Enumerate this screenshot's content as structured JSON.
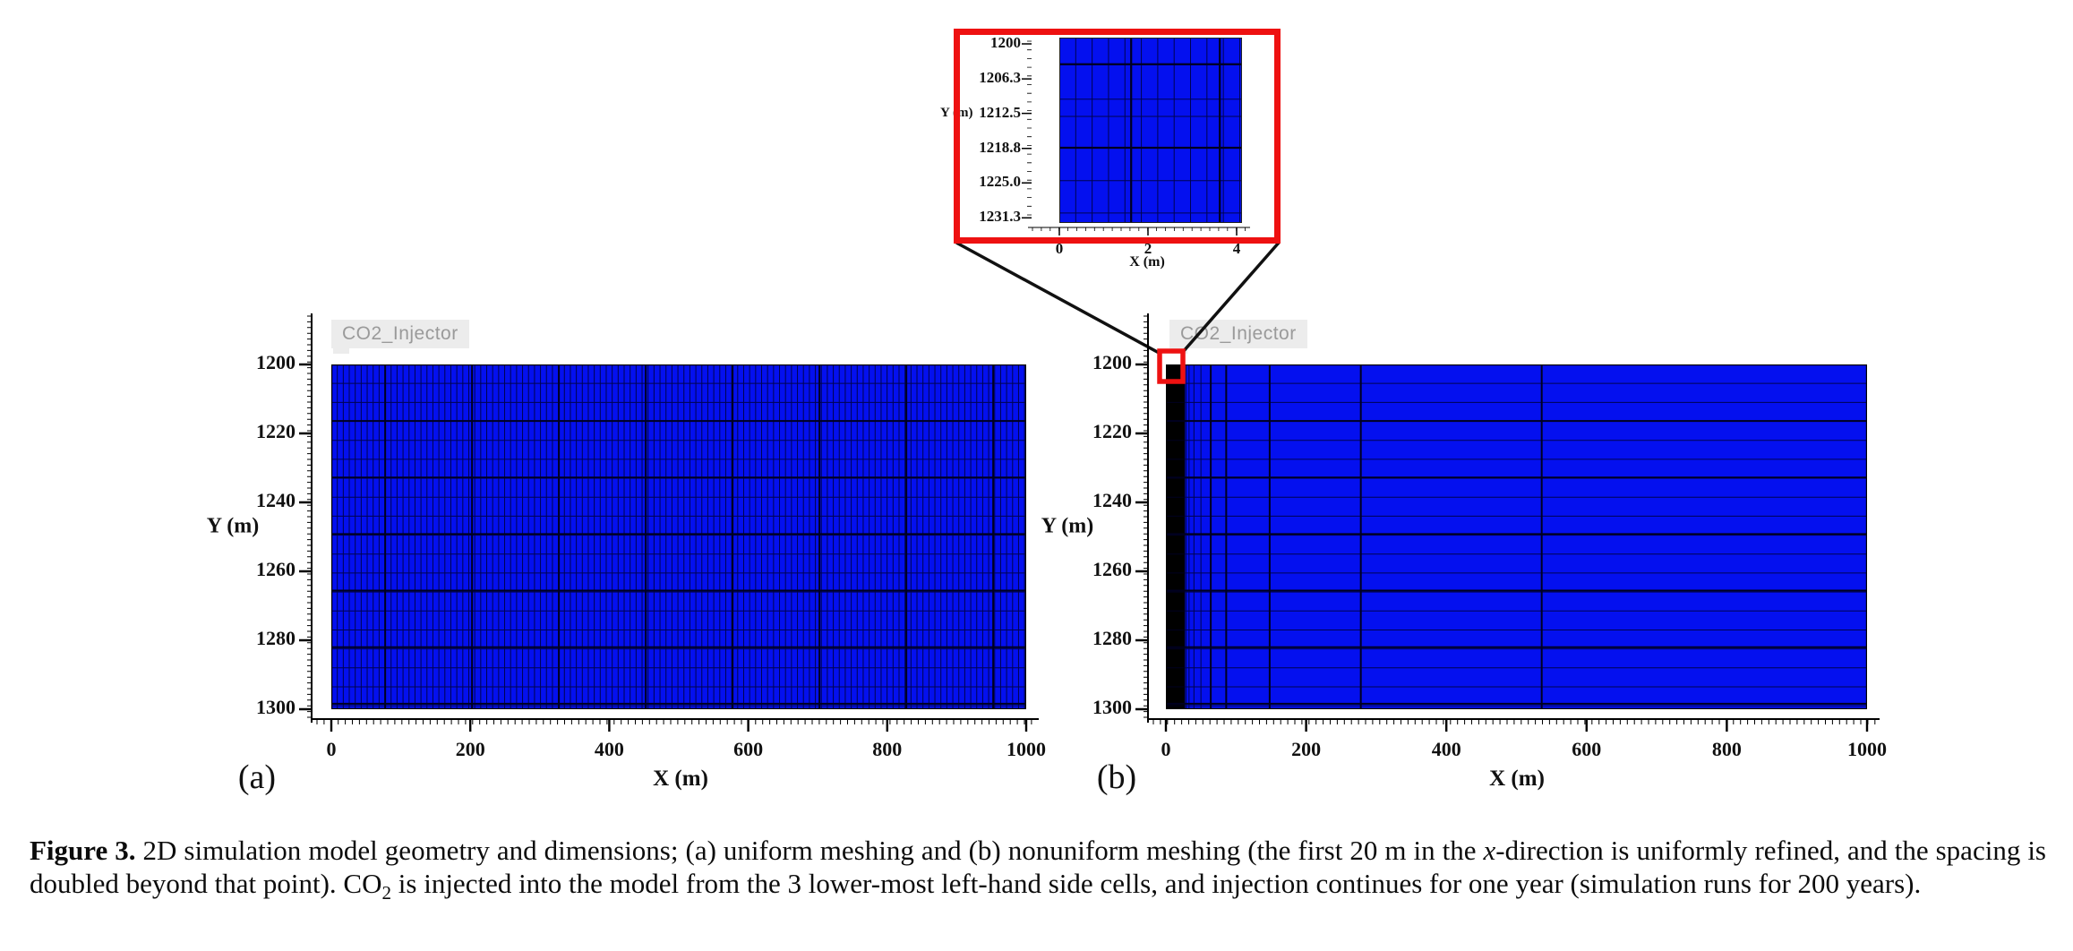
{
  "colors": {
    "mesh_blue": "#0410ef",
    "grid_minor": "rgba(0,0,40,0.8)",
    "grid_bold": "#000020",
    "refined_band": "#000000",
    "callout_red": "#ee1111",
    "injector_bg": "#ececec",
    "injector_text": "#9a9a9a",
    "text": "#111111"
  },
  "inset": {
    "ylabel": "Y (m)",
    "xlabel": "X (m)"
  },
  "panel_a": {
    "injector_label": "CO2_Injector",
    "tag": "(a)",
    "xlabel": "X (m)",
    "ylabel": "Y (m)"
  },
  "panel_b": {
    "injector_label": "CO2_Injector",
    "tag": "(b)",
    "xlabel": "X (m)",
    "ylabel": "Y (m)"
  },
  "caption": {
    "parts": [
      {
        "text": "Figure 3.",
        "bold": true
      },
      {
        "text": " 2D simulation model geometry and dimensions; (a) uniform meshing and (b) nonuniform meshing (the first 20 m in the "
      },
      {
        "text": "x",
        "italic": true
      },
      {
        "text": "-direction is uniformly refined, and the spacing is doubled beyond that point). CO"
      },
      {
        "text": "2",
        "sub": true
      },
      {
        "text": " is injected into the model from the 3 lower-most left-hand side cells, and injection continues for one year (simulation runs for 200 years)."
      }
    ]
  },
  "chart_data": [
    {
      "id": "a",
      "type": "heatmap",
      "panel": "(a)",
      "annotation": "CO2_Injector",
      "xlabel": "X (m)",
      "ylabel": "Y (m)",
      "xlim": [
        0,
        1000
      ],
      "ylim": [
        1200,
        1300
      ],
      "y_axis_inverted_depth": true,
      "xticks": [
        0,
        200,
        400,
        600,
        800,
        1000
      ],
      "yticks": [
        1200,
        1220,
        1240,
        1260,
        1280,
        1300
      ],
      "mesh": "uniform",
      "cell_fill": "#0410ef",
      "x_minor_spacing_m": 8.6,
      "x_bold_spacing_m": 125,
      "y_minor_spacing_m": 5.5,
      "y_bold_spacing_m": 16.4,
      "description": "Uniformly meshed 2D grid, 0-1000 m by 1200-1300 m, solid blue cells with black grid lines"
    },
    {
      "id": "b",
      "type": "heatmap",
      "panel": "(b)",
      "annotation": "CO2_Injector",
      "xlabel": "X (m)",
      "ylabel": "Y (m)",
      "xlim": [
        0,
        1000
      ],
      "ylim": [
        1200,
        1300
      ],
      "y_axis_inverted_depth": true,
      "xticks": [
        0,
        200,
        400,
        600,
        800,
        1000
      ],
      "yticks": [
        1200,
        1220,
        1240,
        1260,
        1280,
        1300
      ],
      "mesh": "nonuniform",
      "cell_fill": "#0410ef",
      "refined_band_m": [
        0,
        20
      ],
      "x_gridlines_m": [
        27,
        29,
        33,
        40,
        50,
        64,
        86,
        148,
        278,
        536
      ],
      "y_minor_spacing_m": 5.5,
      "y_bold_spacing_m": 16.4,
      "description": "Nonuniform mesh: first 20 m in x uniformly refined (appears as solid black band), spacing doubles beyond that point"
    },
    {
      "id": "inset",
      "type": "heatmap",
      "panel": "zoom-inset",
      "xlabel": "X (m)",
      "ylabel": "Y (m)",
      "xlim": [
        0,
        4.2
      ],
      "ylim": [
        1198.7,
        1234.2
      ],
      "xticks": [
        0,
        2,
        4
      ],
      "ytick_labels": [
        "1200",
        "1206.3",
        "1212.5",
        "1218.8",
        "1225.0",
        "1231.3"
      ],
      "ytick_first_value": 1200,
      "ytick_step_value": 6.25,
      "x_minor_spacing_m": 0.37,
      "x_bold_lines_m": [
        1.62,
        3.62
      ],
      "y_gridlines_m": [
        5.1,
        11.8,
        15.1,
        21.1,
        27.4,
        33.6
      ],
      "y_bold_lines_m": [
        5.1,
        21.1
      ],
      "description": "Zoomed view (red callout) of refined cells at top-left corner of panel (b)"
    }
  ]
}
